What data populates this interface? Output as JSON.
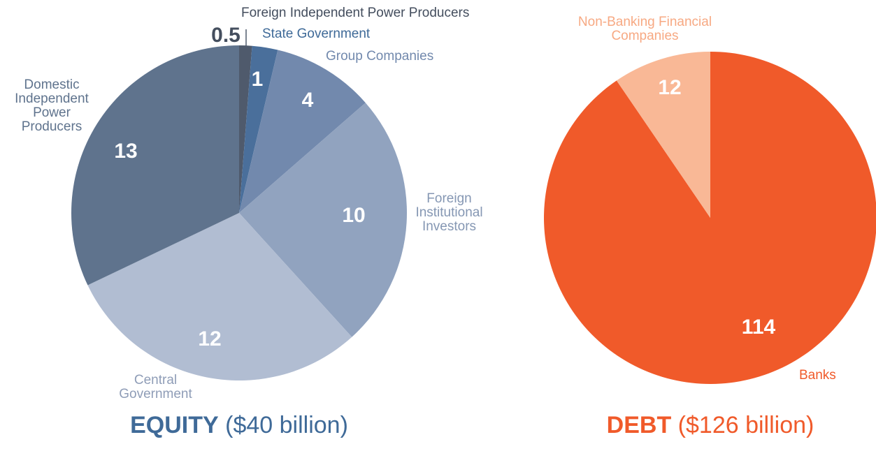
{
  "chart_data": [
    {
      "type": "pie",
      "title": "EQUITY",
      "subtitle": "($40 billion)",
      "categories": [
        "Foreign Independent Power Producers",
        "State Government",
        "Group Companies",
        "Foreign Institutional Investors",
        "Central Government",
        "Domestic Independent Power Producers"
      ],
      "values": [
        0.5,
        1,
        4,
        10,
        12,
        13
      ],
      "colors": [
        "#4f5a6c",
        "#4a6f9b",
        "#7289ad",
        "#91a3bf",
        "#b1bdd2",
        "#5f738d"
      ]
    },
    {
      "type": "pie",
      "title": "DEBT",
      "subtitle": "($126 billion)",
      "categories": [
        "Banks",
        "Non-Banking Financial Companies"
      ],
      "values": [
        114,
        12
      ],
      "colors": [
        "#f05a2a",
        "#f9b896"
      ]
    }
  ]
}
